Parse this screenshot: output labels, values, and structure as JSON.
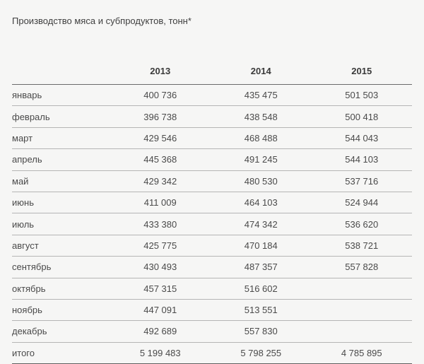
{
  "title": "Производство мяса и субпродуктов, тонн*",
  "colors": {
    "background": "#f6f6f5",
    "text": "#4a4a4a",
    "header_text": "#3a3a3a",
    "header_rule": "#6b6b6b",
    "row_rule": "#b5b5b5",
    "bottom_rule": "#5e5e5e"
  },
  "table": {
    "corner_label": "",
    "columns": [
      "2013",
      "2014",
      "2015"
    ],
    "rows": [
      {
        "month": "январь",
        "y2013": "400 736",
        "y2014": "435 475",
        "y2015": "501 503"
      },
      {
        "month": "февраль",
        "y2013": "396 738",
        "y2014": "438 548",
        "y2015": "500 418"
      },
      {
        "month": "март",
        "y2013": "429 546",
        "y2014": "468 488",
        "y2015": "544 043"
      },
      {
        "month": "апрель",
        "y2013": "445 368",
        "y2014": "491 245",
        "y2015": "544 103"
      },
      {
        "month": "май",
        "y2013": "429 342",
        "y2014": "480 530",
        "y2015": "537 716"
      },
      {
        "month": "июнь",
        "y2013": "411 009",
        "y2014": "464 103",
        "y2015": "524 944"
      },
      {
        "month": "июль",
        "y2013": "433 380",
        "y2014": "474 342",
        "y2015": "536 620"
      },
      {
        "month": "август",
        "y2013": "425 775",
        "y2014": "470 184",
        "y2015": "538 721"
      },
      {
        "month": "сентябрь",
        "y2013": "430 493",
        "y2014": "487 357",
        "y2015": "557 828"
      },
      {
        "month": "октябрь",
        "y2013": "457 315",
        "y2014": "516 602",
        "y2015": ""
      },
      {
        "month": "ноябрь",
        "y2013": "447 091",
        "y2014": "513 551",
        "y2015": ""
      },
      {
        "month": "декабрь",
        "y2013": "492 689",
        "y2014": "557 830",
        "y2015": ""
      },
      {
        "month": "итого",
        "y2013": "5 199 483",
        "y2014": "5 798 255",
        "y2015": "4 785 895"
      }
    ]
  }
}
